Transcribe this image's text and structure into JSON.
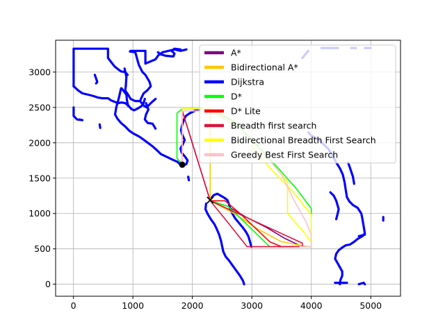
{
  "chart_data": {
    "type": "line",
    "grid": true,
    "legend_position": "upper-right",
    "xlim": [
      -300,
      5500
    ],
    "ylim": [
      -170,
      3450
    ],
    "x_ticks": [
      0,
      1000,
      2000,
      3000,
      4000,
      5000
    ],
    "y_ticks": [
      0,
      500,
      1000,
      1500,
      2000,
      2500,
      3000
    ],
    "x_tick_labels": [
      "0",
      "1000",
      "2000",
      "3000",
      "4000",
      "5000"
    ],
    "y_tick_labels": [
      "0",
      "500",
      "1000",
      "1500",
      "2000",
      "2500",
      "3000"
    ],
    "obstacle_color": "#0000ff",
    "obstacles": [
      [
        [
          3,
          2800
        ],
        [
          3,
          3330
        ],
        [
          580,
          3330
        ],
        [
          580,
          3200
        ],
        [
          635,
          3140
        ],
        [
          690,
          3080
        ],
        [
          750,
          3040
        ],
        [
          800,
          3010
        ],
        [
          870,
          3000
        ],
        [
          910,
          2960
        ]
      ],
      [
        [
          3,
          2800
        ],
        [
          80,
          2740
        ],
        [
          150,
          2700
        ],
        [
          250,
          2680
        ],
        [
          340,
          2660
        ],
        [
          410,
          2640
        ],
        [
          480,
          2630
        ]
      ],
      [
        [
          3,
          2500
        ],
        [
          3,
          2380
        ],
        [
          60,
          2330
        ],
        [
          150,
          2320
        ],
        [
          100,
          2330
        ]
      ],
      [
        [
          480,
          2630
        ],
        [
          580,
          2630
        ],
        [
          630,
          2600
        ],
        [
          690,
          2580
        ],
        [
          750,
          2560
        ],
        [
          810,
          2570
        ],
        [
          870,
          2560
        ],
        [
          930,
          2520
        ],
        [
          970,
          2480
        ],
        [
          1020,
          2460
        ],
        [
          1070,
          2480
        ],
        [
          1130,
          2510
        ],
        [
          1170,
          2540
        ],
        [
          1200,
          2620
        ]
      ],
      [
        [
          960,
          3300
        ],
        [
          1210,
          3300
        ],
        [
          1210,
          3120
        ],
        [
          1380,
          3180
        ],
        [
          1430,
          3240
        ],
        [
          1500,
          3280
        ],
        [
          1600,
          3300
        ],
        [
          1700,
          3320
        ],
        [
          1800,
          3300
        ],
        [
          1900,
          3320
        ]
      ],
      [
        [
          950,
          3290
        ],
        [
          1040,
          3280
        ],
        [
          1100,
          3100
        ],
        [
          1160,
          3000
        ],
        [
          1210,
          2960
        ],
        [
          1280,
          2860
        ],
        [
          1300,
          2800
        ],
        [
          1240,
          2740
        ],
        [
          1180,
          2700
        ],
        [
          1140,
          2630
        ],
        [
          1120,
          2590
        ]
      ],
      [
        [
          860,
          3050
        ],
        [
          890,
          2930
        ],
        [
          880,
          2800
        ],
        [
          870,
          2740
        ],
        [
          920,
          2680
        ],
        [
          960,
          2620
        ],
        [
          1040,
          2590
        ],
        [
          1120,
          2590
        ],
        [
          1190,
          2520
        ],
        [
          1230,
          2500
        ],
        [
          1300,
          2560
        ],
        [
          1380,
          2620
        ]
      ],
      [
        [
          1220,
          2560
        ],
        [
          1260,
          2470
        ],
        [
          1220,
          2400
        ],
        [
          1200,
          2330
        ],
        [
          1250,
          2280
        ],
        [
          1330,
          2270
        ],
        [
          1380,
          2200
        ]
      ],
      [
        [
          810,
          2770
        ],
        [
          890,
          2680
        ],
        [
          900,
          2600
        ],
        [
          920,
          2520
        ]
      ],
      [
        [
          800,
          2770
        ],
        [
          760,
          2620
        ],
        [
          720,
          2500
        ],
        [
          700,
          2400
        ],
        [
          740,
          2340
        ],
        [
          800,
          2280
        ],
        [
          870,
          2230
        ],
        [
          940,
          2170
        ],
        [
          1010,
          2130
        ],
        [
          1100,
          2090
        ],
        [
          1170,
          2050
        ],
        [
          1250,
          2000
        ],
        [
          1330,
          1950
        ],
        [
          1410,
          1890
        ],
        [
          1470,
          1840
        ],
        [
          1570,
          1800
        ],
        [
          1670,
          1760
        ],
        [
          1750,
          1730
        ]
      ],
      [
        [
          1750,
          1730
        ],
        [
          1790,
          1700
        ],
        [
          1850,
          1680
        ],
        [
          1900,
          1700
        ],
        [
          1920,
          1750
        ],
        [
          1880,
          1800
        ],
        [
          1820,
          1860
        ],
        [
          1800,
          1920
        ],
        [
          1840,
          1980
        ],
        [
          1870,
          2040
        ],
        [
          1830,
          2110
        ],
        [
          1810,
          2180
        ],
        [
          1830,
          2260
        ],
        [
          1860,
          2330
        ],
        [
          1890,
          2380
        ],
        [
          1960,
          2420
        ],
        [
          2060,
          2460
        ],
        [
          2150,
          2480
        ]
      ],
      [
        [
          1420,
          3280
        ],
        [
          1470,
          3250
        ],
        [
          1550,
          3230
        ],
        [
          1680,
          3220
        ],
        [
          1700,
          3260
        ],
        [
          1650,
          3300
        ],
        [
          1700,
          3330
        ],
        [
          1800,
          3320
        ]
      ],
      [
        [
          4170,
          3340
        ],
        [
          4450,
          3340
        ]
      ],
      [
        [
          4670,
          3340
        ],
        [
          4750,
          3340
        ]
      ],
      [
        [
          4900,
          3340
        ],
        [
          5000,
          3340
        ]
      ],
      [
        [
          3850,
          3200
        ],
        [
          3950,
          3300
        ]
      ],
      [
        [
          3950,
          2150
        ],
        [
          4000,
          2100
        ],
        [
          4100,
          2060
        ],
        [
          4180,
          2000
        ],
        [
          4280,
          1920
        ],
        [
          4350,
          1830
        ],
        [
          4420,
          1720
        ],
        [
          4480,
          1640
        ],
        [
          4530,
          1550
        ],
        [
          4560,
          1440
        ],
        [
          4580,
          1330
        ],
        [
          4600,
          1230
        ],
        [
          4640,
          1170
        ],
        [
          4700,
          1120
        ],
        [
          4780,
          1080
        ],
        [
          4840,
          1000
        ],
        [
          4860,
          920
        ],
        [
          4880,
          820
        ],
        [
          4900,
          720
        ],
        [
          4860,
          680
        ],
        [
          4780,
          640
        ],
        [
          4720,
          600
        ],
        [
          4650,
          560
        ],
        [
          4580,
          550
        ],
        [
          4520,
          520
        ],
        [
          4460,
          480
        ],
        [
          4420,
          430
        ],
        [
          4400,
          360
        ],
        [
          4440,
          300
        ],
        [
          4480,
          240
        ],
        [
          4520,
          180
        ],
        [
          4520,
          120
        ],
        [
          4490,
          60
        ],
        [
          4480,
          0
        ]
      ],
      [
        [
          4320,
          1300
        ],
        [
          4380,
          1250
        ],
        [
          4420,
          1180
        ],
        [
          4440,
          1120
        ],
        [
          4460,
          1060
        ],
        [
          4440,
          990
        ],
        [
          4420,
          920
        ]
      ],
      [
        [
          4620,
          1720
        ],
        [
          4660,
          1620
        ],
        [
          4700,
          1520
        ],
        [
          4720,
          1420
        ]
      ],
      [
        [
          4800,
          680
        ],
        [
          4900,
          700
        ]
      ],
      [
        [
          4400,
          20
        ],
        [
          4600,
          20
        ]
      ],
      [
        [
          4800,
          0
        ],
        [
          4880,
          20
        ],
        [
          4900,
          0
        ]
      ],
      [
        [
          5210,
          950
        ],
        [
          5210,
          900
        ]
      ],
      [
        [
          2300,
          1200
        ],
        [
          2360,
          1260
        ],
        [
          2420,
          1280
        ],
        [
          2480,
          1250
        ],
        [
          2540,
          1220
        ],
        [
          2590,
          1190
        ],
        [
          2620,
          1120
        ],
        [
          2640,
          1050
        ],
        [
          2680,
          990
        ],
        [
          2720,
          930
        ],
        [
          2780,
          870
        ],
        [
          2840,
          810
        ],
        [
          2900,
          740
        ],
        [
          2940,
          680
        ],
        [
          2970,
          600
        ],
        [
          2990,
          530
        ]
      ],
      [
        [
          2230,
          1140
        ],
        [
          2220,
          1060
        ],
        [
          2260,
          990
        ],
        [
          2310,
          920
        ],
        [
          2370,
          850
        ],
        [
          2410,
          780
        ],
        [
          2450,
          700
        ],
        [
          2480,
          620
        ],
        [
          2500,
          540
        ],
        [
          2520,
          460
        ],
        [
          2560,
          390
        ],
        [
          2620,
          330
        ],
        [
          2680,
          260
        ],
        [
          2740,
          190
        ],
        [
          2800,
          120
        ],
        [
          2850,
          50
        ],
        [
          2870,
          0
        ]
      ],
      [
        [
          440,
          2260
        ],
        [
          450,
          2210
        ]
      ],
      [
        [
          1930,
          1520
        ],
        [
          1940,
          1470
        ]
      ],
      [
        [
          360,
          2960
        ],
        [
          400,
          2860
        ],
        [
          380,
          2840
        ]
      ]
    ],
    "series": [
      {
        "name": "A*",
        "color": "#800080",
        "points": [
          [
            1830,
            1700
          ],
          [
            1830,
            2450
          ],
          [
            2300,
            1180
          ],
          [
            2600,
            1100
          ],
          [
            2900,
            950
          ],
          [
            3250,
            800
          ],
          [
            3550,
            650
          ],
          [
            3800,
            550
          ]
        ]
      },
      {
        "name": "Bidirectional A*",
        "color": "#ffc800",
        "points": [
          [
            1830,
            1700
          ],
          [
            1830,
            2480
          ],
          [
            2300,
            2480
          ],
          [
            2300,
            1180
          ],
          [
            2700,
            1000
          ],
          [
            3100,
            780
          ],
          [
            3500,
            600
          ],
          [
            3950,
            530
          ]
        ]
      },
      {
        "name": "Dijkstra",
        "color": "#0000ff",
        "points": []
      },
      {
        "name": "D*",
        "color": "#00ff00",
        "points": [
          [
            1830,
            1700
          ],
          [
            1740,
            1780
          ],
          [
            1740,
            2420
          ],
          [
            1830,
            2480
          ],
          [
            2300,
            2480
          ],
          [
            2700,
            2300
          ],
          [
            3050,
            2000
          ],
          [
            3400,
            1680
          ],
          [
            3750,
            1350
          ],
          [
            4000,
            1070
          ],
          [
            4000,
            530
          ],
          [
            3800,
            530
          ],
          [
            3300,
            530
          ],
          [
            2900,
            860
          ],
          [
            2600,
            1100
          ],
          [
            2300,
            1180
          ]
        ]
      },
      {
        "name": "D* Lite",
        "color": "#ff0000",
        "points": [
          [
            2300,
            1180
          ],
          [
            2550,
            1180
          ],
          [
            2800,
            1000
          ],
          [
            3050,
            800
          ],
          [
            3300,
            600
          ],
          [
            3500,
            530
          ],
          [
            3700,
            530
          ]
        ]
      },
      {
        "name": "Breadth first search",
        "color": "#dc143c",
        "points": [
          [
            1830,
            1700
          ],
          [
            1830,
            2450
          ],
          [
            2300,
            1180
          ],
          [
            2600,
            870
          ],
          [
            2920,
            530
          ],
          [
            3850,
            530
          ],
          [
            3850,
            580
          ],
          [
            2300,
            1180
          ]
        ]
      },
      {
        "name": "Bidirectional Breadth First Search",
        "color": "#ffff00",
        "points": [
          [
            1830,
            1700
          ],
          [
            1830,
            2480
          ],
          [
            2300,
            2480
          ],
          [
            2800,
            2200
          ],
          [
            3250,
            1800
          ],
          [
            3600,
            1450
          ],
          [
            3600,
            1000
          ],
          [
            3850,
            760
          ],
          [
            4000,
            600
          ],
          [
            4000,
            980
          ],
          [
            3700,
            1300
          ],
          [
            3350,
            1600
          ],
          [
            3000,
            1950
          ]
        ]
      },
      {
        "name": "Greedy Best First Search",
        "color": "#ffc0cb",
        "points": [
          [
            1830,
            1700
          ],
          [
            1830,
            2450
          ],
          [
            2300,
            2450
          ],
          [
            2800,
            2200
          ],
          [
            3200,
            1850
          ],
          [
            3500,
            1550
          ],
          [
            3700,
            1200
          ],
          [
            3900,
            900
          ],
          [
            4000,
            700
          ],
          [
            4000,
            530
          ],
          [
            3800,
            530
          ]
        ]
      }
    ],
    "markers": [
      {
        "shape": "dot",
        "color": "#000000",
        "x": 1830,
        "y": 1690
      },
      {
        "shape": "x",
        "color": "#000000",
        "x": 2300,
        "y": 1190
      }
    ]
  }
}
